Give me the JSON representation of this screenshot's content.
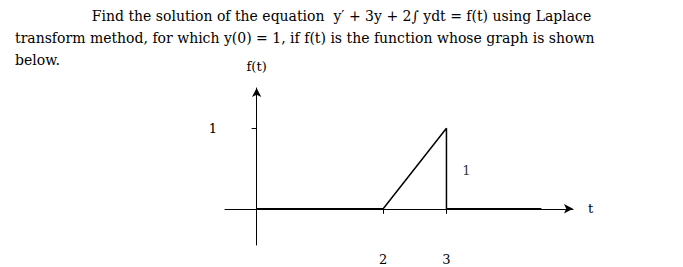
{
  "chart_data": {
    "type": "line",
    "title": [
      "Find the solution of the equation  y′ + 3y + 2∫ ydt = f(t) using Laplace",
      "transform method, for which y(0) = 1, if f(t) is the function whose graph is shown",
      "below."
    ],
    "xlabel": "t",
    "ylabel": "f(t)",
    "x": [
      0.0,
      2.0,
      3.0,
      3.0,
      4.5
    ],
    "values": [
      0.0,
      0.0,
      1.0,
      0.0,
      0.0
    ],
    "color": "#000000",
    "xlim": [
      -0.5,
      5.0
    ],
    "ylim": [
      -0.45,
      1.5
    ],
    "xticks": [
      2,
      3
    ],
    "yticks": [
      1
    ],
    "grid": false,
    "annotations": [
      {
        "text": "1",
        "x": 3.22,
        "y": 0.48
      }
    ]
  }
}
